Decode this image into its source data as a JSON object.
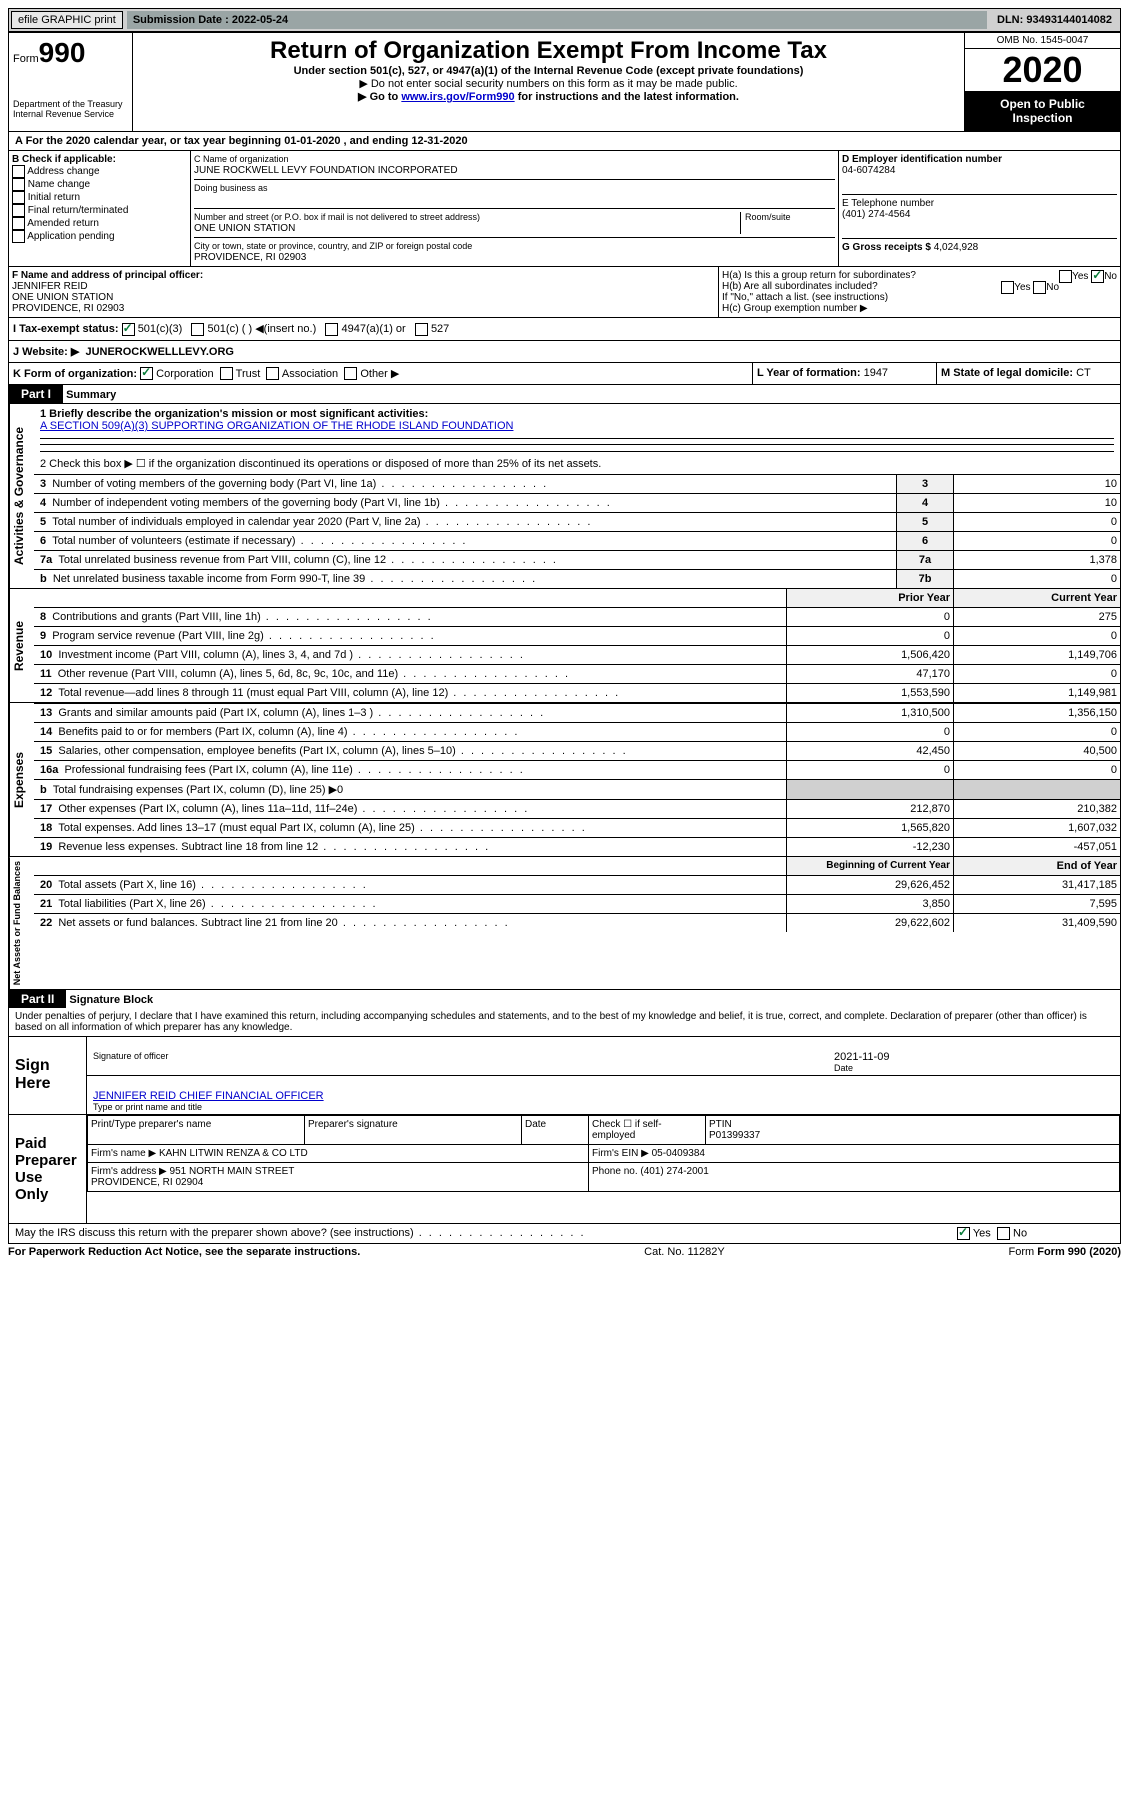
{
  "topbar": {
    "efile": "efile GRAPHIC print",
    "submission_label": "Submission Date : 2022-05-24",
    "dln_label": "DLN: 93493144014082"
  },
  "header": {
    "form_word": "Form",
    "form_num": "990",
    "dept": "Department of the Treasury\nInternal Revenue Service",
    "title": "Return of Organization Exempt From Income Tax",
    "subtitle1": "Under section 501(c), 527, or 4947(a)(1) of the Internal Revenue Code (except private foundations)",
    "subtitle2": "▶ Do not enter social security numbers on this form as it may be made public.",
    "subtitle3_pre": "▶ Go to ",
    "subtitle3_link": "www.irs.gov/Form990",
    "subtitle3_post": " for instructions and the latest information.",
    "omb": "OMB No. 1545-0047",
    "year": "2020",
    "open_public": "Open to Public Inspection"
  },
  "line_a": "A For the 2020 calendar year, or tax year beginning 01-01-2020    , and ending 12-31-2020",
  "box_b": {
    "title": "B Check if applicable:",
    "opts": [
      "Address change",
      "Name change",
      "Initial return",
      "Final return/terminated",
      "Amended return",
      "Application pending"
    ]
  },
  "box_c": {
    "label": "C Name of organization",
    "name": "JUNE ROCKWELL LEVY FOUNDATION INCORPORATED",
    "dba_label": "Doing business as",
    "addr_label": "Number and street (or P.O. box if mail is not delivered to street address)",
    "room_label": "Room/suite",
    "addr": "ONE UNION STATION",
    "city_label": "City or town, state or province, country, and ZIP or foreign postal code",
    "city": "PROVIDENCE, RI  02903"
  },
  "box_d": {
    "label": "D Employer identification number",
    "val": "04-6074284"
  },
  "box_e": {
    "label": "E Telephone number",
    "val": "(401) 274-4564"
  },
  "box_g": {
    "label": "G Gross receipts $",
    "val": "4,024,928"
  },
  "box_f": {
    "label": "F Name and address of principal officer:",
    "name": "JENNIFER REID",
    "addr1": "ONE UNION STATION",
    "addr2": "PROVIDENCE, RI  02903"
  },
  "box_h": {
    "ha": "H(a)  Is this a group return for subordinates?",
    "hb": "H(b)  Are all subordinates included?",
    "hb_note": "If \"No,\" attach a list. (see instructions)",
    "hc": "H(c)  Group exemption number ▶",
    "yes": "Yes",
    "no": "No"
  },
  "box_i": {
    "label": "I   Tax-exempt status:",
    "opts": [
      "501(c)(3)",
      "501(c) (  ) ◀(insert no.)",
      "4947(a)(1) or",
      "527"
    ]
  },
  "box_j": {
    "label": "J   Website: ▶",
    "val": "JUNEROCKWELLLEVY.ORG"
  },
  "box_k": {
    "label": "K Form of organization:",
    "opts": [
      "Corporation",
      "Trust",
      "Association",
      "Other ▶"
    ]
  },
  "box_l": {
    "label": "L Year of formation:",
    "val": "1947"
  },
  "box_m": {
    "label": "M State of legal domicile:",
    "val": "CT"
  },
  "part1": {
    "label": "Part I",
    "title": "Summary",
    "vert_ag": "Activities & Governance",
    "line1": "1  Briefly describe the organization's mission or most significant activities:",
    "line1_val": "A SECTION 509(A)(3) SUPPORTING ORGANIZATION OF THE RHODE ISLAND FOUNDATION",
    "line2": "2   Check this box ▶ ☐ if the organization discontinued its operations or disposed of more than 25% of its net assets.",
    "rows_gov": [
      {
        "n": "3",
        "t": "Number of voting members of the governing body (Part VI, line 1a)",
        "b": "3",
        "v": "10"
      },
      {
        "n": "4",
        "t": "Number of independent voting members of the governing body (Part VI, line 1b)",
        "b": "4",
        "v": "10"
      },
      {
        "n": "5",
        "t": "Total number of individuals employed in calendar year 2020 (Part V, line 2a)",
        "b": "5",
        "v": "0"
      },
      {
        "n": "6",
        "t": "Total number of volunteers (estimate if necessary)",
        "b": "6",
        "v": "0"
      },
      {
        "n": "7a",
        "t": "Total unrelated business revenue from Part VIII, column (C), line 12",
        "b": "7a",
        "v": "1,378"
      },
      {
        "n": "b",
        "t": "Net unrelated business taxable income from Form 990-T, line 39",
        "b": "7b",
        "v": "0"
      }
    ],
    "vert_rev": "Revenue",
    "hdr_prior": "Prior Year",
    "hdr_curr": "Current Year",
    "rows_rev": [
      {
        "n": "8",
        "t": "Contributions and grants (Part VIII, line 1h)",
        "p": "0",
        "c": "275"
      },
      {
        "n": "9",
        "t": "Program service revenue (Part VIII, line 2g)",
        "p": "0",
        "c": "0"
      },
      {
        "n": "10",
        "t": "Investment income (Part VIII, column (A), lines 3, 4, and 7d )",
        "p": "1,506,420",
        "c": "1,149,706"
      },
      {
        "n": "11",
        "t": "Other revenue (Part VIII, column (A), lines 5, 6d, 8c, 9c, 10c, and 11e)",
        "p": "47,170",
        "c": "0"
      },
      {
        "n": "12",
        "t": "Total revenue—add lines 8 through 11 (must equal Part VIII, column (A), line 12)",
        "p": "1,553,590",
        "c": "1,149,981"
      }
    ],
    "vert_exp": "Expenses",
    "rows_exp": [
      {
        "n": "13",
        "t": "Grants and similar amounts paid (Part IX, column (A), lines 1–3 )",
        "p": "1,310,500",
        "c": "1,356,150"
      },
      {
        "n": "14",
        "t": "Benefits paid to or for members (Part IX, column (A), line 4)",
        "p": "0",
        "c": "0"
      },
      {
        "n": "15",
        "t": "Salaries, other compensation, employee benefits (Part IX, column (A), lines 5–10)",
        "p": "42,450",
        "c": "40,500"
      },
      {
        "n": "16a",
        "t": "Professional fundraising fees (Part IX, column (A), line 11e)",
        "p": "0",
        "c": "0"
      },
      {
        "n": "b",
        "t": "Total fundraising expenses (Part IX, column (D), line 25) ▶0",
        "p": "",
        "c": ""
      },
      {
        "n": "17",
        "t": "Other expenses (Part IX, column (A), lines 11a–11d, 11f–24e)",
        "p": "212,870",
        "c": "210,382"
      },
      {
        "n": "18",
        "t": "Total expenses. Add lines 13–17 (must equal Part IX, column (A), line 25)",
        "p": "1,565,820",
        "c": "1,607,032"
      },
      {
        "n": "19",
        "t": "Revenue less expenses. Subtract line 18 from line 12",
        "p": "-12,230",
        "c": "-457,051"
      }
    ],
    "vert_net": "Net Assets or Fund Balances",
    "hdr_beg": "Beginning of Current Year",
    "hdr_end": "End of Year",
    "rows_net": [
      {
        "n": "20",
        "t": "Total assets (Part X, line 16)",
        "p": "29,626,452",
        "c": "31,417,185"
      },
      {
        "n": "21",
        "t": "Total liabilities (Part X, line 26)",
        "p": "3,850",
        "c": "7,595"
      },
      {
        "n": "22",
        "t": "Net assets or fund balances. Subtract line 21 from line 20",
        "p": "29,622,602",
        "c": "31,409,590"
      }
    ]
  },
  "part2": {
    "label": "Part II",
    "title": "Signature Block",
    "perjury": "Under penalties of perjury, I declare that I have examined this return, including accompanying schedules and statements, and to the best of my knowledge and belief, it is true, correct, and complete. Declaration of preparer (other than officer) is based on all information of which preparer has any knowledge.",
    "sign_here": "Sign Here",
    "sig_officer": "Signature of officer",
    "sig_date": "2021-11-09",
    "date_label": "Date",
    "officer_name": "JENNIFER REID CHIEF FINANCIAL OFFICER",
    "type_label": "Type or print name and title",
    "paid_prep": "Paid Preparer Use Only",
    "col_print": "Print/Type preparer's name",
    "col_sig": "Preparer's signature",
    "col_date": "Date",
    "col_check": "Check ☐ if self-employed",
    "col_ptin_label": "PTIN",
    "col_ptin": "P01399337",
    "firm_name_label": "Firm's name    ▶",
    "firm_name": "KAHN LITWIN RENZA & CO LTD",
    "firm_ein_label": "Firm's EIN ▶",
    "firm_ein": "05-0409384",
    "firm_addr_label": "Firm's address ▶",
    "firm_addr": "951 NORTH MAIN STREET\nPROVIDENCE, RI  02904",
    "phone_label": "Phone no.",
    "phone": "(401) 274-2001",
    "discuss": "May the IRS discuss this return with the preparer shown above? (see instructions)",
    "yes": "Yes",
    "no": "No"
  },
  "footer": {
    "left": "For Paperwork Reduction Act Notice, see the separate instructions.",
    "mid": "Cat. No. 11282Y",
    "right": "Form 990 (2020)"
  }
}
